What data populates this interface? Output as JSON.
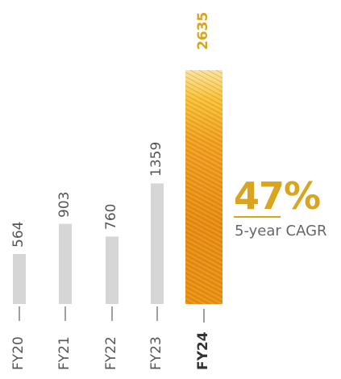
{
  "chart_data": {
    "type": "bar",
    "categories": [
      "FY20",
      "FY21",
      "FY22",
      "FY23",
      "FY24"
    ],
    "values": [
      564,
      903,
      760,
      1359,
      2635
    ],
    "value_labels": [
      "564",
      "903",
      "760",
      "1359",
      "2635"
    ],
    "highlight_index": 4,
    "colors": {
      "bar": "#d6d6d6",
      "highlight_bar": "#e8940f",
      "highlight_text": "#d9a520",
      "axis_text": "#555555"
    }
  },
  "cagr": {
    "value": "47%",
    "label": "5-year CAGR"
  }
}
